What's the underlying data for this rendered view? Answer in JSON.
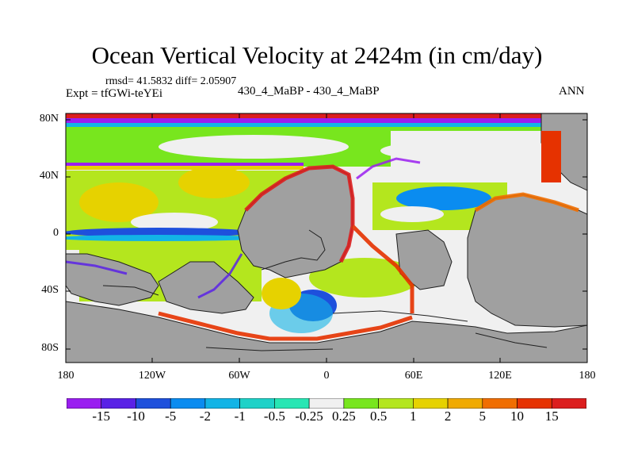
{
  "title": "Ocean Vertical Velocity at 2424m (in cm/day)",
  "stats": "rmsd= 41.5832 diff= 2.05907",
  "experiment": "Expt = tfGWi-teYEi",
  "cases": "430_4_MaBP - 430_4_MaBP",
  "season": "ANN",
  "axes": {
    "y_labels": [
      "80N",
      "40N",
      "0",
      "40S",
      "80S"
    ],
    "x_labels": [
      "180",
      "120W",
      "60W",
      "0",
      "60E",
      "120E",
      "180"
    ]
  },
  "colorbar": {
    "labels": [
      "-15",
      "-10",
      "-5",
      "-2",
      "-1",
      "-0.5",
      "-0.25",
      "0.25",
      "0.5",
      "1",
      "2",
      "5",
      "10",
      "15"
    ],
    "colors": [
      "#9a1ef0",
      "#5a22e6",
      "#1e50dc",
      "#0a8cf0",
      "#12b4e6",
      "#1ed2c8",
      "#28e6b4",
      "#f0f0f0",
      "#78e61e",
      "#b4e61e",
      "#e6d200",
      "#f0aa00",
      "#f06e00",
      "#e63200",
      "#dc1e1e"
    ]
  },
  "map_colors": {
    "land": "#a0a0a0",
    "near_zero": "#f0f0f0",
    "coast_outline": "#202020"
  }
}
